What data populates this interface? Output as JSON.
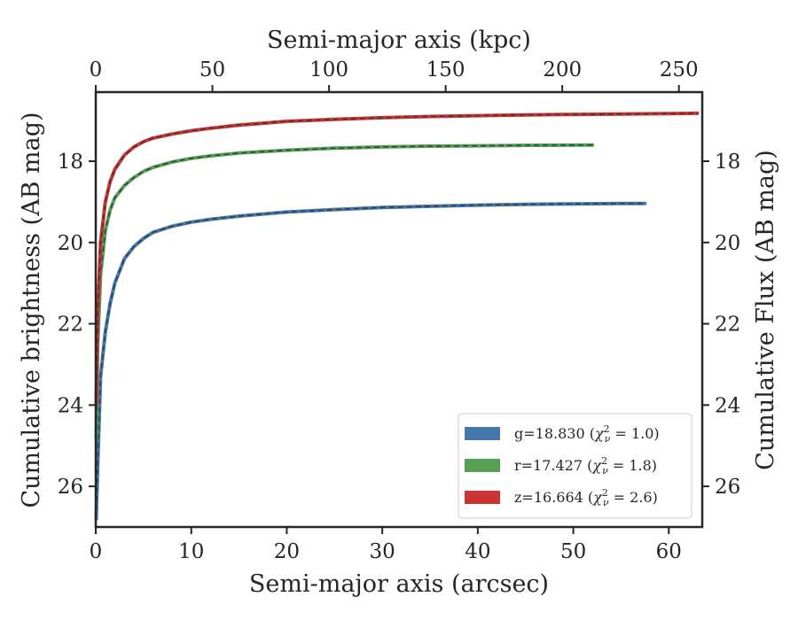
{
  "chart_data": {
    "type": "line",
    "xlabel": "Semi-major axis (arcsec)",
    "x2label": "Semi-major axis (kpc)",
    "ylabel": "Cumulative brightness (AB mag)",
    "y2label": "Cumulative Flux (AB mag)",
    "xlim": [
      0,
      63.5
    ],
    "x2lim": [
      0,
      260
    ],
    "ylim": [
      27,
      16.3
    ],
    "y_inverted": true,
    "x_ticks": [
      "0",
      "10",
      "20",
      "30",
      "40",
      "50",
      "60"
    ],
    "x_tick_values": [
      0,
      10,
      20,
      30,
      40,
      50,
      60
    ],
    "x2_ticks": [
      "0",
      "50",
      "100",
      "150",
      "200",
      "250"
    ],
    "x2_tick_values": [
      0,
      50,
      100,
      150,
      200,
      250
    ],
    "y_ticks": [
      "18",
      "20",
      "22",
      "24",
      "26"
    ],
    "y_tick_values": [
      18,
      20,
      22,
      24,
      26
    ],
    "legend_position": "lower-right",
    "series": [
      {
        "name": "g=18.830 ($\\chi^2_\\nu=1.0$)",
        "legend_prefix": "g=18.830 (",
        "legend_chi_value": "1.0",
        "color": "#4477aa",
        "x": [
          0.05,
          0.2,
          0.5,
          1,
          1.5,
          2,
          3,
          4,
          5,
          6,
          8,
          10,
          12,
          15,
          20,
          25,
          30,
          35,
          40,
          45,
          50,
          55,
          57.5
        ],
        "y": [
          26.8,
          25.5,
          23.3,
          22.2,
          21.5,
          21.0,
          20.4,
          20.1,
          19.9,
          19.75,
          19.6,
          19.5,
          19.43,
          19.35,
          19.25,
          19.19,
          19.14,
          19.11,
          19.08,
          19.06,
          19.05,
          19.04,
          19.04
        ]
      },
      {
        "name": "r=17.427 ($\\chi^2_\\nu=1.8$)",
        "legend_prefix": "r=17.427 (",
        "legend_chi_value": "1.8",
        "color": "#55a055",
        "x": [
          0.05,
          0.2,
          0.5,
          1,
          1.5,
          2,
          3,
          4,
          5,
          6,
          8,
          10,
          12,
          15,
          20,
          25,
          30,
          35,
          40,
          45,
          52
        ],
        "y": [
          24.8,
          22.5,
          20.8,
          19.7,
          19.2,
          18.9,
          18.6,
          18.4,
          18.25,
          18.15,
          18.02,
          17.93,
          17.87,
          17.8,
          17.73,
          17.68,
          17.65,
          17.63,
          17.62,
          17.61,
          17.6
        ]
      },
      {
        "name": "z=16.664 ($\\chi^2_\\nu=2.6$)",
        "legend_prefix": "z=16.664 (",
        "legend_chi_value": "2.6",
        "color": "#cc3333",
        "x": [
          0.05,
          0.2,
          0.5,
          1,
          1.5,
          2,
          3,
          4,
          5,
          6,
          8,
          10,
          12,
          15,
          20,
          25,
          30,
          35,
          40,
          45,
          50,
          55,
          60,
          63
        ],
        "y": [
          24.0,
          21.8,
          20.0,
          19.0,
          18.5,
          18.2,
          17.85,
          17.65,
          17.52,
          17.43,
          17.33,
          17.25,
          17.19,
          17.11,
          17.02,
          16.97,
          16.93,
          16.9,
          16.88,
          16.86,
          16.85,
          16.84,
          16.83,
          16.82
        ]
      }
    ]
  }
}
